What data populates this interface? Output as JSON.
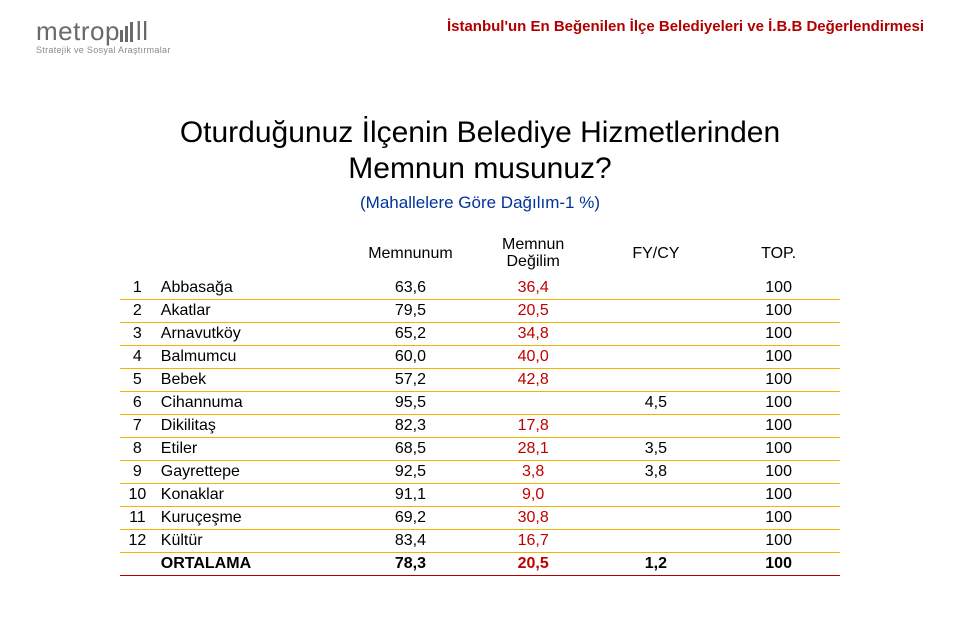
{
  "colors": {
    "header_title": "#b20000",
    "subtitle": "#003399",
    "row_border": "#f2b400",
    "avg_border": "#b20000",
    "cell_default": "#000000",
    "cell_highlight": "#c00000",
    "logo_gray": "#6a6a6a"
  },
  "logo": {
    "brand": "metrop",
    "brand_suffix": "ll",
    "sub": "Stratejik ve Sosyal Araştırmalar"
  },
  "header_title": "İstanbul'un En Beğenilen İlçe Belediyeleri ve İ.B.B Değerlendirmesi",
  "title_line1": "Oturduğunuz İlçenin Belediye Hizmetlerinden",
  "title_line2": "Memnun musunuz?",
  "subtitle": "(Mahallelere Göre Dağılım-1 %)",
  "table": {
    "headers": [
      "",
      "",
      "Memnunum",
      "Memnun Değilim",
      "FY/CY",
      "TOP."
    ],
    "col_widths": [
      "34px",
      "190px",
      "120px",
      "120px",
      "120px",
      "120px"
    ],
    "highlight_col_index": 3,
    "rows": [
      {
        "idx": "1",
        "name": "Abbasağa",
        "v1": "63,6",
        "v2": "36,4",
        "v3": "",
        "v4": "100"
      },
      {
        "idx": "2",
        "name": "Akatlar",
        "v1": "79,5",
        "v2": "20,5",
        "v3": "",
        "v4": "100"
      },
      {
        "idx": "3",
        "name": "Arnavutköy",
        "v1": "65,2",
        "v2": "34,8",
        "v3": "",
        "v4": "100"
      },
      {
        "idx": "4",
        "name": "Balmumcu",
        "v1": "60,0",
        "v2": "40,0",
        "v3": "",
        "v4": "100"
      },
      {
        "idx": "5",
        "name": "Bebek",
        "v1": "57,2",
        "v2": "42,8",
        "v3": "",
        "v4": "100"
      },
      {
        "idx": "6",
        "name": "Cihannuma",
        "v1": "95,5",
        "v2": "",
        "v3": "4,5",
        "v4": "100"
      },
      {
        "idx": "7",
        "name": "Dikilitaş",
        "v1": "82,3",
        "v2": "17,8",
        "v3": "",
        "v4": "100"
      },
      {
        "idx": "8",
        "name": "Etiler",
        "v1": "68,5",
        "v2": "28,1",
        "v3": "3,5",
        "v4": "100"
      },
      {
        "idx": "9",
        "name": "Gayrettepe",
        "v1": "92,5",
        "v2": "3,8",
        "v3": "3,8",
        "v4": "100"
      },
      {
        "idx": "10",
        "name": "Konaklar",
        "v1": "91,1",
        "v2": "9,0",
        "v3": "",
        "v4": "100"
      },
      {
        "idx": "11",
        "name": "Kuruçeşme",
        "v1": "69,2",
        "v2": "30,8",
        "v3": "",
        "v4": "100"
      },
      {
        "idx": "12",
        "name": "Kültür",
        "v1": "83,4",
        "v2": "16,7",
        "v3": "",
        "v4": "100"
      }
    ],
    "average": {
      "name": "ORTALAMA",
      "v1": "78,3",
      "v2": "20,5",
      "v3": "1,2",
      "v4": "100"
    }
  }
}
